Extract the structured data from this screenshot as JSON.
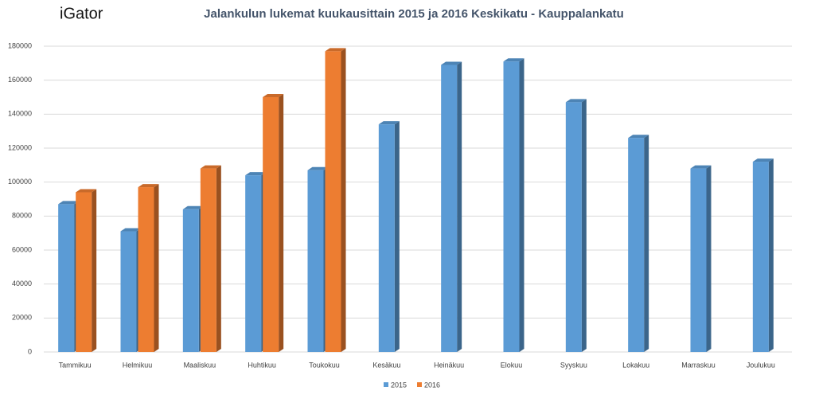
{
  "brand": "iGator",
  "chart_data": {
    "type": "bar",
    "title": "Jalankulun lukemat kuukausittain 2015 ja 2016 Keskikatu - Kauppalankatu",
    "categories": [
      "Tammikuu",
      "Helmikuu",
      "Maaliskuu",
      "Huhtikuu",
      "Toukokuu",
      "Kesäkuu",
      "Heinäkuu",
      "Elokuu",
      "Syyskuu",
      "Lokakuu",
      "Marraskuu",
      "Joulukuu"
    ],
    "series": [
      {
        "name": "2015",
        "color": "#5b9bd5",
        "values": [
          87000,
          71000,
          84000,
          104000,
          107000,
          134000,
          169000,
          171000,
          147000,
          126000,
          108000,
          112000
        ]
      },
      {
        "name": "2016",
        "color": "#ed7d31",
        "values": [
          94000,
          97000,
          108000,
          150000,
          177000,
          null,
          null,
          null,
          null,
          null,
          null,
          null
        ]
      }
    ],
    "ylim": [
      0,
      180000
    ],
    "yticks": [
      0,
      20000,
      40000,
      60000,
      80000,
      100000,
      120000,
      140000,
      160000,
      180000
    ],
    "grid": true,
    "legend": "bottom"
  }
}
